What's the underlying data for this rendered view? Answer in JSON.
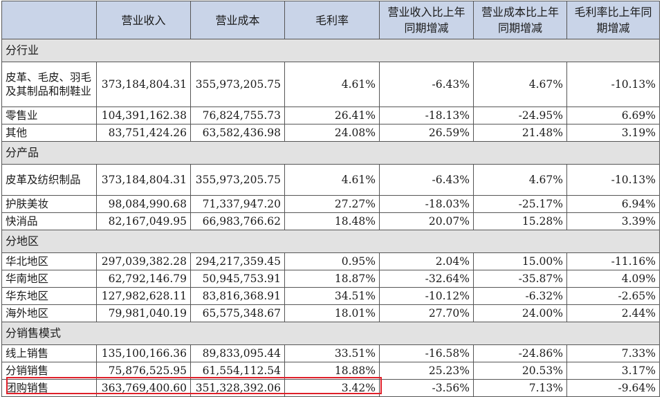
{
  "columns": [
    "",
    "营业收入",
    "营业成本",
    "毛利率",
    "营业收入比上年同期增减",
    "营业成本比上年同期增减",
    "毛利率比上年同期增减"
  ],
  "sections": [
    {
      "title": "分行业",
      "rows": [
        {
          "label": "皮革、毛皮、羽毛及其制品和制鞋业",
          "values": [
            "373,184,804.31",
            "355,973,205.75",
            "4.61%",
            "-6.43%",
            "4.67%",
            "-10.13%"
          ]
        },
        {
          "label": "零售业",
          "values": [
            "104,391,162.38",
            "76,824,755.73",
            "26.41%",
            "-18.13%",
            "-24.95%",
            "6.69%"
          ]
        },
        {
          "label": "其他",
          "values": [
            "83,751,424.26",
            "63,582,436.98",
            "24.08%",
            "26.59%",
            "21.48%",
            "3.19%"
          ]
        }
      ]
    },
    {
      "title": "分产品",
      "rows": [
        {
          "label": "皮革及纺织制品",
          "values": [
            "373,184,804.31",
            "355,973,205.75",
            "4.61%",
            "-6.43%",
            "4.67%",
            "-10.13%"
          ]
        },
        {
          "label": "护肤美妆",
          "values": [
            "98,084,990.68",
            "71,337,947.20",
            "27.27%",
            "-18.03%",
            "-25.17%",
            "6.94%"
          ]
        },
        {
          "label": "快消品",
          "values": [
            "82,167,049.95",
            "66,983,766.62",
            "18.48%",
            "20.07%",
            "15.28%",
            "3.39%"
          ]
        }
      ]
    },
    {
      "title": "分地区",
      "rows": [
        {
          "label": "华北地区",
          "values": [
            "297,039,382.28",
            "294,217,359.45",
            "0.95%",
            "2.04%",
            "15.00%",
            "-11.16%"
          ]
        },
        {
          "label": "华南地区",
          "values": [
            "62,792,146.79",
            "50,945,753.91",
            "18.87%",
            "-32.64%",
            "-35.87%",
            "4.09%"
          ]
        },
        {
          "label": "华东地区",
          "values": [
            "127,982,628.11",
            "83,816,368.91",
            "34.51%",
            "-10.12%",
            "-6.32%",
            "-2.65%"
          ]
        },
        {
          "label": "海外地区",
          "values": [
            "79,981,040.19",
            "65,575,348.67",
            "18.01%",
            "27.70%",
            "24.00%",
            "2.44%"
          ]
        }
      ]
    },
    {
      "title": "分销售模式",
      "rows": [
        {
          "label": "线上销售",
          "values": [
            "135,100,166.36",
            "89,833,095.44",
            "33.51%",
            "-16.58%",
            "-24.86%",
            "7.33%"
          ]
        },
        {
          "label": "分销销售",
          "values": [
            "75,876,525.95",
            "61,554,112.54",
            "18.88%",
            "25.23%",
            "20.53%",
            "3.17%"
          ]
        },
        {
          "label": "团购销售",
          "values": [
            "363,769,400.60",
            "351,328,392.06",
            "3.42%",
            "-3.56%",
            "7.13%",
            "-9.64%"
          ]
        }
      ]
    }
  ],
  "highlight": {
    "row_label": "团购销售",
    "color": "#e0202a"
  }
}
